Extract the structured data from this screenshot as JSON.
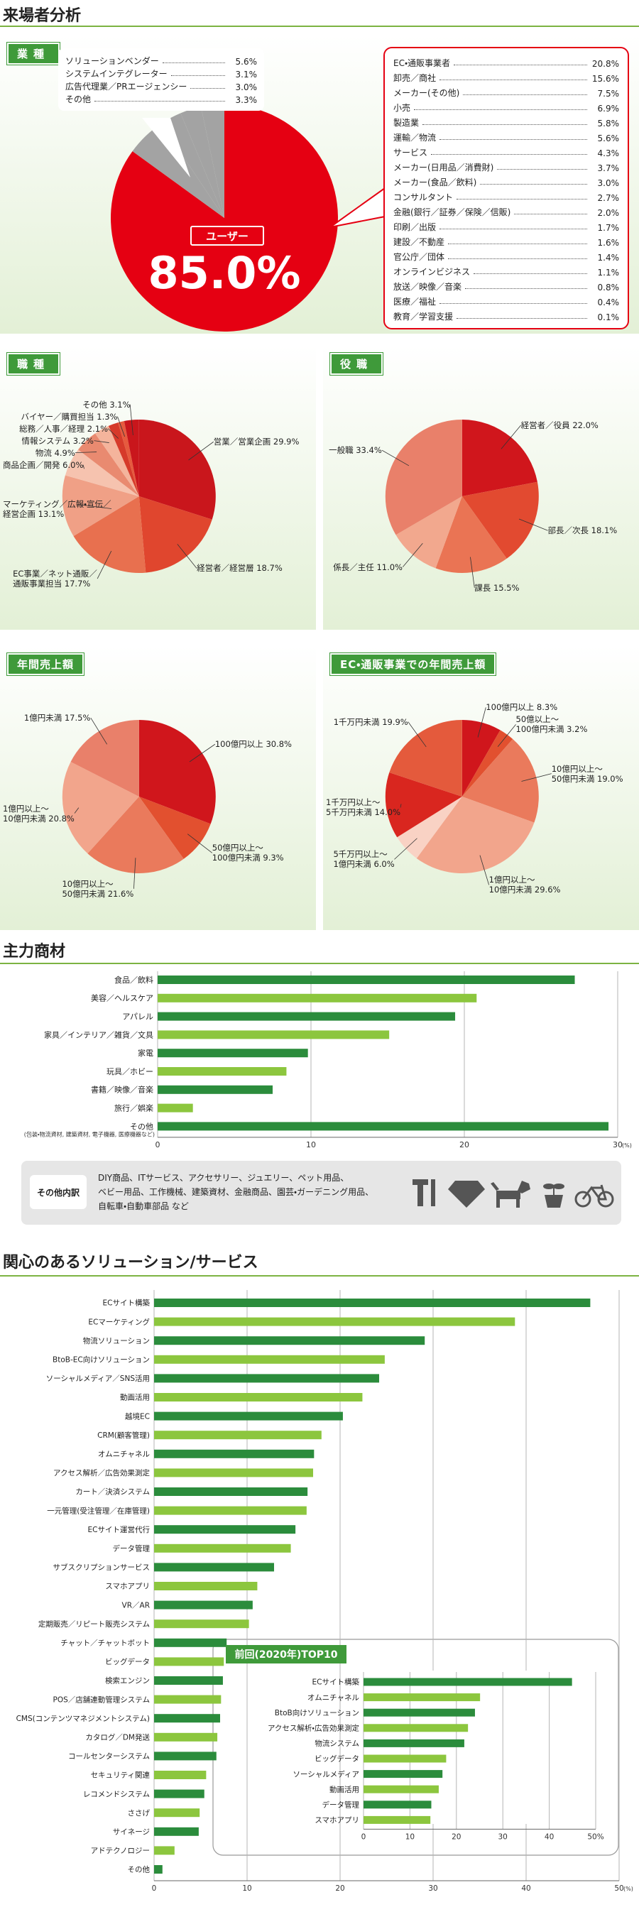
{
  "section_title": "来場者分析",
  "chart_data": [
    {
      "type": "industry-pie",
      "title": "業種",
      "user": {
        "label": "ユーザー",
        "value": 85.0,
        "value_label": "85.0%",
        "color": "#e50012"
      },
      "others": {
        "categories": [
          "ソリューションベンダー",
          "システムインテグレーター",
          "広告代理業／PRエージェンシー",
          "その他"
        ],
        "values": [
          5.6,
          3.1,
          3.0,
          3.3
        ],
        "value_labels": [
          "5.6%",
          "3.1%",
          "3.0%",
          "3.3%"
        ],
        "color": "#a3a3a3"
      },
      "user_breakdown": {
        "categories": [
          "EC・通販事業者",
          "卸売／商社",
          "メーカー(その他)",
          "小売",
          "製造業",
          "運輸／物流",
          "サービス",
          "メーカー(日用品／消費財)",
          "メーカー(食品／飲料)",
          "コンサルタント",
          "金融(銀行／証券／保険／信販)",
          "印刷／出版",
          "建設／不動産",
          "官公庁／団体",
          "オンラインビジネス",
          "放送／映像／音楽",
          "医療／福祉",
          "教育／学習支援"
        ],
        "values": [
          20.8,
          15.6,
          7.5,
          6.9,
          5.8,
          5.6,
          4.3,
          3.7,
          3.0,
          2.7,
          2.0,
          1.7,
          1.6,
          1.4,
          1.1,
          0.8,
          0.4,
          0.1
        ],
        "value_labels": [
          "20.8%",
          "15.6%",
          "7.5%",
          "6.9%",
          "5.8%",
          "5.6%",
          "4.3%",
          "3.7%",
          "3.0%",
          "2.7%",
          "2.0%",
          "1.7%",
          "1.6%",
          "1.4%",
          "1.1%",
          "0.8%",
          "0.4%",
          "0.1%"
        ]
      }
    },
    {
      "type": "pie",
      "title": "職種",
      "categories": [
        "営業／営業企画",
        "経営者／経営層",
        "EC事業／ネット通販／\n通販事業担当",
        "マーケティング／広報・宣伝／\n経営企画",
        "商品企画／開発",
        "物流",
        "情報システム",
        "総務／人事／経理",
        "バイヤー／購買担当",
        "その他"
      ],
      "values": [
        29.9,
        18.7,
        17.7,
        13.1,
        6.0,
        4.9,
        3.2,
        2.1,
        1.3,
        3.1
      ],
      "value_labels": [
        "29.9%",
        "18.7%",
        "17.7%",
        "13.1%",
        "6.0%",
        "4.9%",
        "3.2%",
        "2.1%",
        "1.3%",
        "3.1%"
      ],
      "colors": [
        "#c9161c",
        "#e0462e",
        "#e8704f",
        "#f0a086",
        "#f6c3af",
        "#e98a70",
        "#f4b49c",
        "#d63a2a",
        "#e65a3e",
        "#c9161c"
      ]
    },
    {
      "type": "pie",
      "title": "役職",
      "categories": [
        "経営者／役員",
        "部長／次長",
        "課長",
        "係長／主任",
        "一般職"
      ],
      "values": [
        22.0,
        18.1,
        15.5,
        11.0,
        33.4
      ],
      "value_labels": [
        "22.0%",
        "18.1%",
        "15.5%",
        "11.0%",
        "33.4%"
      ],
      "colors": [
        "#d0161c",
        "#e24a30",
        "#ea7454",
        "#f2a88e",
        "#e9806a"
      ]
    },
    {
      "type": "pie",
      "title": "年間売上額",
      "categories": [
        "100億円以上",
        "50億円以上～\n100億円未満",
        "10億円以上～\n50億円未満",
        "1億円以上～\n10億円未満",
        "1億円未満"
      ],
      "values": [
        30.8,
        9.3,
        21.6,
        20.8,
        17.5
      ],
      "value_labels": [
        "30.8%",
        "9.3%",
        "21.6%",
        "20.8%",
        "17.5%"
      ],
      "colors": [
        "#d0161c",
        "#e2502f",
        "#ea7a5c",
        "#f2a58c",
        "#e9806a"
      ]
    },
    {
      "type": "pie",
      "title": "EC・通販事業での年間売上額",
      "categories": [
        "100億円以上",
        "50億以上～\n100億円未満",
        "10億円以上～\n50億円未満",
        "1億円以上～\n10億円未満",
        "5千万円以上～\n1億円未満",
        "1千万円以上～\n5千万円未満",
        "1千万円未満"
      ],
      "values": [
        8.3,
        3.2,
        19.0,
        29.6,
        6.0,
        14.0,
        19.9
      ],
      "value_labels": [
        "8.3%",
        "3.2%",
        "19.0%",
        "29.6%",
        "6.0%",
        "14.0%",
        "19.9%"
      ],
      "colors": [
        "#d0161c",
        "#e2502f",
        "#ea7a5c",
        "#f2a58c",
        "#f9d2c4",
        "#d9261f",
        "#e45a3c"
      ]
    },
    {
      "type": "hbar",
      "title": "主力商材",
      "categories": [
        "食品／飲料",
        "美容／ヘルスケア",
        "アパレル",
        "家具／インテリア／雑貨／文具",
        "家電",
        "玩具／ホビー",
        "書籍／映像／音楽",
        "旅行／娯楽",
        "その他"
      ],
      "category_note": "(包装・物流資材, 建築資材, 電子機器, 医療機器など)",
      "values": [
        27.2,
        20.8,
        19.4,
        15.1,
        9.8,
        8.4,
        7.5,
        2.3,
        29.4
      ],
      "colors": [
        "#2b8c3c",
        "#8cc63e"
      ],
      "xlim": [
        0,
        30
      ],
      "xticks": [
        0,
        10,
        20,
        30
      ],
      "unit": "(%)",
      "grid": true
    },
    {
      "type": "hbar",
      "title": "関心のあるソリューション/サービス",
      "categories": [
        "ECサイト構築",
        "ECマーケティング",
        "物流ソリューション",
        "BtoB-EC向けソリューション",
        "ソーシャルメディア／SNS活用",
        "動画活用",
        "越境EC",
        "CRM(顧客管理)",
        "オムニチャネル",
        "アクセス解析／広告効果測定",
        "カート／決済システム",
        "一元管理(受注管理／在庫管理)",
        "ECサイト運営代行",
        "データ管理",
        "サブスクリプションサービス",
        "スマホアプリ",
        "VR／AR",
        "定期販売／リピート販売システム",
        "チャット／チャットボット",
        "ビッグデータ",
        "検索エンジン",
        "POS／店舗連動管理システム",
        "CMS(コンテンツマネジメントシステム)",
        "カタログ／DM発送",
        "コールセンターシステム",
        "セキュリティ関連",
        "レコメンドシステム",
        "ささげ",
        "サイネージ",
        "アドテクノロジー",
        "その他"
      ],
      "values": [
        46.9,
        38.8,
        29.1,
        24.8,
        24.2,
        22.4,
        20.3,
        18.0,
        17.2,
        17.1,
        16.5,
        16.4,
        15.2,
        14.7,
        12.9,
        11.1,
        10.6,
        10.2,
        7.8,
        7.5,
        7.4,
        7.2,
        7.1,
        6.8,
        6.7,
        5.6,
        5.4,
        4.9,
        4.8,
        2.2,
        0.9
      ],
      "colors": [
        "#2b8c3c",
        "#8cc63e"
      ],
      "xlim": [
        0,
        50
      ],
      "xticks": [
        0,
        10,
        20,
        30,
        40,
        50
      ],
      "unit": "(%)",
      "grid": true,
      "inset": {
        "title": "前回(2020年)TOP10",
        "categories": [
          "ECサイト構築",
          "オムニチャネル",
          "BtoB向けソリューション",
          "アクセス解析・広告効果測定",
          "物流システム",
          "ビッグデータ",
          "ソーシャルメディア",
          "動画活用",
          "データ管理",
          "スマホアプリ"
        ],
        "values": [
          44.9,
          25.1,
          24.0,
          22.5,
          21.7,
          17.8,
          17.0,
          16.2,
          14.6,
          14.4
        ],
        "colors": [
          "#2b8c3c",
          "#8cc63e"
        ],
        "xlim": [
          0,
          50
        ],
        "xticks": [
          0,
          10,
          20,
          30,
          40,
          {
            "value": 50,
            "label": "50%"
          }
        ],
        "grid": true
      }
    }
  ],
  "other_products": {
    "label": "その他内訳",
    "text": "DIY商品、ITサービス、アクセサリー、ジュエリー、ペット用品、\nベビー用品、工作機械、建築資材、金融商品、園芸・ガーデニング用品、\n自転車・自動車部品 など"
  }
}
